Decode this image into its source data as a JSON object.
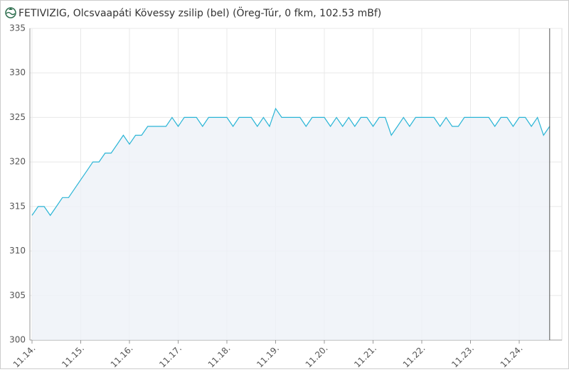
{
  "chart_data": {
    "type": "line",
    "title": "FETIVIZIG, Olcsvaapáti Kövessy zsilip (bel) (Öreg-Túr, 0 fkm, 102.53 mBf)",
    "x": [
      14,
      14.125,
      14.25,
      14.375,
      14.5,
      14.625,
      14.75,
      14.875,
      15,
      15.125,
      15.25,
      15.375,
      15.5,
      15.625,
      15.75,
      15.875,
      16,
      16.125,
      16.25,
      16.375,
      16.5,
      16.625,
      16.75,
      16.875,
      17,
      17.125,
      17.25,
      17.375,
      17.5,
      17.625,
      17.75,
      17.875,
      18,
      18.125,
      18.25,
      18.375,
      18.5,
      18.625,
      18.75,
      18.875,
      19,
      19.125,
      19.25,
      19.375,
      19.5,
      19.625,
      19.75,
      19.875,
      20,
      20.125,
      20.25,
      20.375,
      20.5,
      20.625,
      20.75,
      20.875,
      21,
      21.125,
      21.25,
      21.375,
      21.5,
      21.625,
      21.75,
      21.875,
      22,
      22.125,
      22.25,
      22.375,
      22.5,
      22.625,
      22.75,
      22.875,
      23,
      23.125,
      23.25,
      23.375,
      23.5,
      23.625,
      23.75,
      23.875,
      24,
      24.125,
      24.25,
      24.375,
      24.5,
      24.625
    ],
    "series": [
      {
        "color": "#2bb5d6",
        "values": [
          314,
          315,
          315,
          314,
          315,
          316,
          316,
          317,
          318,
          319,
          320,
          320,
          321,
          321,
          322,
          323,
          322,
          323,
          323,
          324,
          324,
          324,
          324,
          325,
          324,
          325,
          325,
          325,
          324,
          325,
          325,
          325,
          325,
          324,
          325,
          325,
          325,
          324,
          325,
          324,
          326,
          325,
          325,
          325,
          325,
          324,
          325,
          325,
          325,
          324,
          325,
          324,
          325,
          324,
          325,
          325,
          324,
          325,
          325,
          323,
          324,
          325,
          324,
          325,
          325,
          325,
          325,
          324,
          325,
          324,
          324,
          325,
          325,
          325,
          325,
          325,
          324,
          325,
          325,
          324,
          325,
          325,
          324,
          325,
          323,
          324
        ]
      }
    ],
    "xlim": [
      13.956,
      24.876
    ],
    "xticks": [
      {
        "value": 14,
        "label": "11.14."
      },
      {
        "value": 15,
        "label": "11.15."
      },
      {
        "value": 16,
        "label": "11.16."
      },
      {
        "value": 17,
        "label": "11.17."
      },
      {
        "value": 18,
        "label": "11.18."
      },
      {
        "value": 19,
        "label": "11.19."
      },
      {
        "value": 20,
        "label": "11.20."
      },
      {
        "value": 21,
        "label": "11.21."
      },
      {
        "value": 22,
        "label": "11.22."
      },
      {
        "value": 23,
        "label": "11.23."
      },
      {
        "value": 24,
        "label": "11.24."
      }
    ],
    "ylim": [
      300,
      335
    ],
    "yticks": [
      300,
      305,
      310,
      315,
      320,
      325,
      330,
      335
    ],
    "grid": true
  }
}
